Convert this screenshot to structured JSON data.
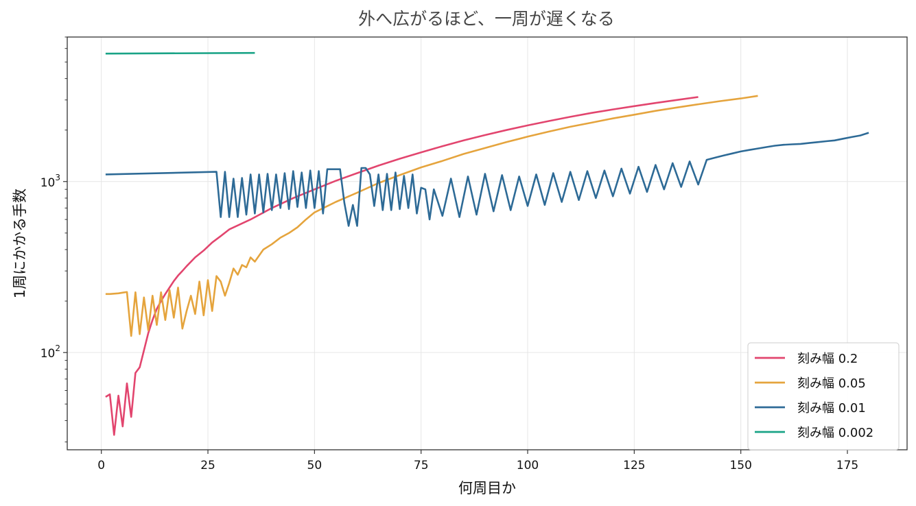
{
  "chart_data": {
    "type": "line",
    "title": "外へ広がるほど、一周が遅くなる",
    "xlabel": "何周目か",
    "ylabel": "1周にかかる手数",
    "xlim": [
      -8,
      189
    ],
    "ylim": [
      27,
      7000
    ],
    "yscale": "log",
    "grid": true,
    "legend_position": "lower-right",
    "x_ticks": [
      0,
      25,
      50,
      75,
      100,
      125,
      150,
      175
    ],
    "y_ticks": [
      {
        "value": 100,
        "base": "10",
        "exp": "2"
      },
      {
        "value": 1000,
        "base": "10",
        "exp": "3"
      }
    ],
    "series": [
      {
        "name": "刻み幅 0.2",
        "color": "#e2456e",
        "x": [
          1,
          2,
          3,
          4,
          5,
          6,
          7,
          8,
          9,
          10,
          11,
          12,
          13,
          14,
          15,
          16,
          17,
          18,
          19,
          20,
          22,
          24,
          26,
          28,
          30,
          35,
          40,
          45,
          50,
          55,
          60,
          65,
          70,
          75,
          80,
          85,
          90,
          95,
          100,
          105,
          110,
          115,
          120,
          125,
          130,
          135,
          140
        ],
        "y": [
          55,
          57,
          33,
          56,
          37,
          66,
          42,
          76,
          82,
          103,
          130,
          155,
          180,
          200,
          220,
          240,
          262,
          282,
          300,
          320,
          360,
          395,
          440,
          480,
          525,
          600,
          700,
          800,
          900,
          1010,
          1120,
          1240,
          1360,
          1480,
          1610,
          1740,
          1870,
          2000,
          2130,
          2260,
          2390,
          2520,
          2640,
          2760,
          2880,
          3000,
          3120
        ]
      },
      {
        "name": "刻み幅 0.05",
        "color": "#e5a43d",
        "x": [
          1,
          2,
          3,
          4,
          5,
          6,
          7,
          8,
          9,
          10,
          11,
          12,
          13,
          14,
          15,
          16,
          17,
          18,
          19,
          20,
          21,
          22,
          23,
          24,
          25,
          26,
          27,
          28,
          29,
          30,
          31,
          32,
          33,
          34,
          35,
          36,
          38,
          40,
          42,
          44,
          46,
          48,
          50,
          55,
          60,
          65,
          70,
          75,
          80,
          85,
          90,
          95,
          100,
          105,
          110,
          115,
          120,
          125,
          130,
          135,
          140,
          145,
          150,
          154
        ],
        "y": [
          220,
          220,
          221,
          222,
          224,
          226,
          125,
          225,
          128,
          210,
          135,
          215,
          145,
          225,
          155,
          232,
          160,
          240,
          138,
          175,
          215,
          168,
          260,
          165,
          265,
          175,
          280,
          260,
          215,
          255,
          310,
          285,
          325,
          315,
          360,
          340,
          400,
          430,
          470,
          500,
          540,
          600,
          660,
          760,
          860,
          980,
          1090,
          1210,
          1320,
          1450,
          1570,
          1700,
          1830,
          1960,
          2090,
          2210,
          2340,
          2460,
          2590,
          2710,
          2830,
          2950,
          3060,
          3170
        ]
      },
      {
        "name": "刻み幅 0.01",
        "color": "#2d6a96",
        "x": [
          1,
          27,
          28,
          29,
          30,
          31,
          32,
          33,
          34,
          35,
          36,
          37,
          38,
          39,
          40,
          41,
          42,
          43,
          44,
          45,
          46,
          47,
          48,
          49,
          50,
          51,
          52,
          53,
          56,
          57,
          58,
          59,
          60,
          61,
          62,
          63,
          64,
          65,
          66,
          67,
          68,
          69,
          70,
          71,
          72,
          73,
          74,
          75,
          76,
          77,
          78,
          80,
          82,
          84,
          86,
          88,
          90,
          92,
          94,
          96,
          98,
          100,
          102,
          104,
          106,
          108,
          110,
          112,
          114,
          116,
          118,
          120,
          122,
          124,
          126,
          128,
          130,
          132,
          134,
          136,
          138,
          140,
          142,
          144,
          146,
          148,
          150,
          152,
          154,
          156,
          158,
          160,
          162,
          164,
          166,
          168,
          170,
          172,
          174,
          176,
          178,
          180
        ],
        "y": [
          1100,
          1140,
          620,
          1140,
          620,
          1040,
          620,
          1050,
          640,
          1100,
          650,
          1100,
          660,
          1110,
          680,
          1100,
          700,
          1120,
          690,
          1150,
          710,
          1130,
          700,
          1160,
          700,
          1150,
          650,
          1180,
          1180,
          750,
          550,
          730,
          550,
          1200,
          1200,
          1100,
          720,
          1100,
          680,
          1110,
          680,
          1130,
          690,
          1080,
          700,
          1100,
          650,
          920,
          900,
          600,
          900,
          630,
          1040,
          620,
          1070,
          640,
          1110,
          670,
          1090,
          680,
          1070,
          720,
          1100,
          730,
          1120,
          760,
          1140,
          780,
          1150,
          800,
          1160,
          820,
          1190,
          850,
          1220,
          870,
          1250,
          900,
          1280,
          930,
          1310,
          960,
          1340,
          1380,
          1420,
          1460,
          1500,
          1530,
          1560,
          1590,
          1620,
          1640,
          1650,
          1660,
          1680,
          1700,
          1720,
          1740,
          1780,
          1820,
          1860,
          1930
        ]
      },
      {
        "name": "刻み幅 0.002",
        "color": "#19a386",
        "x": [
          1,
          36
        ],
        "y": [
          5600,
          5650
        ]
      }
    ]
  }
}
